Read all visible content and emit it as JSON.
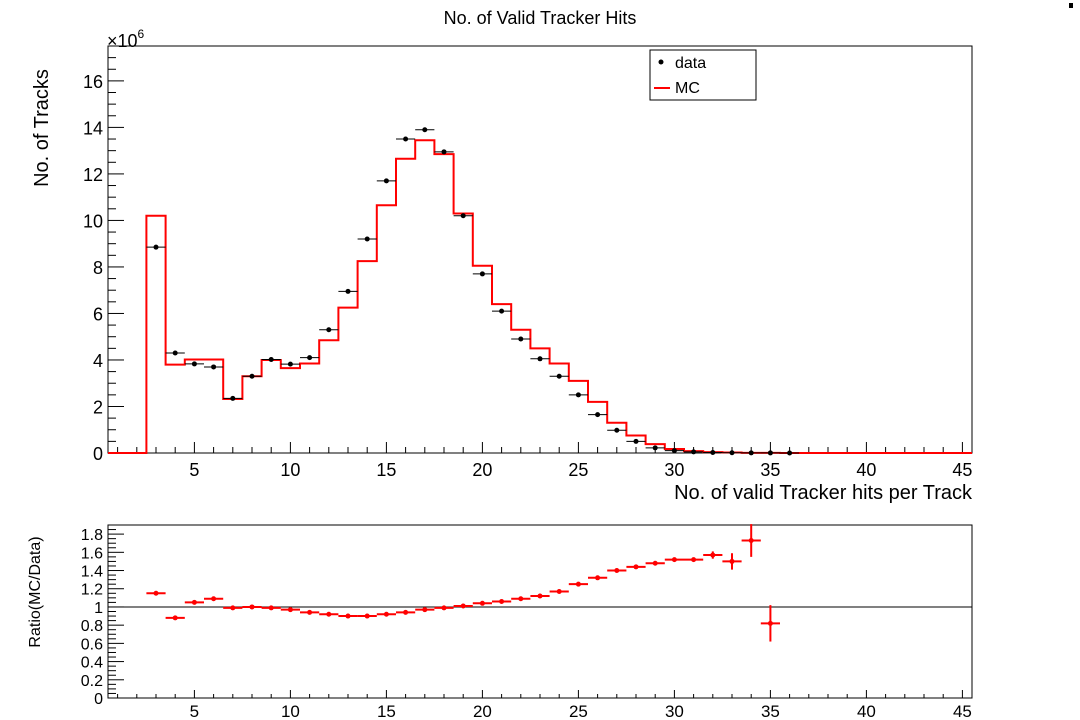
{
  "chart_data": [
    {
      "type": "histogram",
      "title": "No. of Valid Tracker Hits",
      "xlabel": "No. of valid Tracker hits per Track",
      "ylabel": "No. of Tracks",
      "y_multiplier": "×10",
      "y_multiplier_exp": "6",
      "xlim": [
        0.5,
        45.5
      ],
      "ylim": [
        0,
        17.5
      ],
      "x_ticks": [
        "5",
        "10",
        "15",
        "20",
        "25",
        "30",
        "35",
        "40",
        "45"
      ],
      "y_ticks": [
        "0",
        "2",
        "4",
        "6",
        "8",
        "10",
        "12",
        "14",
        "16"
      ],
      "legend": {
        "position": "top-right",
        "entries": [
          {
            "name": "data",
            "marker": "dot",
            "color": "#000000"
          },
          {
            "name": "MC",
            "marker": "line",
            "color": "#ff0000"
          }
        ]
      },
      "series": [
        {
          "name": "data",
          "x": [
            3,
            4,
            5,
            6,
            7,
            8,
            9,
            10,
            11,
            12,
            13,
            14,
            15,
            16,
            17,
            18,
            19,
            20,
            21,
            22,
            23,
            24,
            25,
            26,
            27,
            28,
            29,
            30,
            31,
            32,
            33,
            34,
            35,
            36
          ],
          "values": [
            8.85,
            4.3,
            3.83,
            3.7,
            2.35,
            3.3,
            4.02,
            3.82,
            4.1,
            5.3,
            6.95,
            9.2,
            11.7,
            13.5,
            13.9,
            12.95,
            10.2,
            7.7,
            6.1,
            4.9,
            4.05,
            3.3,
            2.5,
            1.65,
            0.98,
            0.5,
            0.22,
            0.1,
            0.05,
            0.02,
            0.01,
            0.005,
            0.003,
            0.001
          ]
        },
        {
          "name": "MC",
          "bins_low": 0.5,
          "bin_width": 1,
          "values": [
            0,
            0,
            10.2,
            3.8,
            4.02,
            4.02,
            2.32,
            3.3,
            4.0,
            3.65,
            3.85,
            4.85,
            6.25,
            8.25,
            10.65,
            12.65,
            13.45,
            12.85,
            10.3,
            8.05,
            6.4,
            5.3,
            4.5,
            3.85,
            3.1,
            2.2,
            1.3,
            0.75,
            0.38,
            0.17,
            0.08,
            0.04,
            0.02,
            0.008,
            0.003,
            0.001,
            0,
            0,
            0,
            0,
            0,
            0,
            0,
            0,
            0
          ]
        }
      ]
    },
    {
      "type": "scatter",
      "title": "",
      "xlabel": "",
      "ylabel": "Ratio(MC/Data)",
      "xlim": [
        0.5,
        45.5
      ],
      "ylim": [
        0,
        1.9
      ],
      "x_ticks": [
        "5",
        "10",
        "15",
        "20",
        "25",
        "30",
        "35",
        "40",
        "45"
      ],
      "y_ticks": [
        "0",
        "0.2",
        "0.4",
        "0.6",
        "0.8",
        "1",
        "1.2",
        "1.4",
        "1.6",
        "1.8"
      ],
      "reference_line": 1,
      "series": [
        {
          "name": "",
          "color": "#ff0000",
          "x": [
            3,
            4,
            5,
            6,
            7,
            8,
            9,
            10,
            11,
            12,
            13,
            14,
            15,
            16,
            17,
            18,
            19,
            20,
            21,
            22,
            23,
            24,
            25,
            26,
            27,
            28,
            29,
            30,
            31,
            32,
            33,
            34,
            35
          ],
          "values": [
            1.15,
            0.88,
            1.05,
            1.09,
            0.99,
            1.0,
            0.99,
            0.97,
            0.94,
            0.92,
            0.9,
            0.9,
            0.92,
            0.94,
            0.97,
            0.99,
            1.01,
            1.04,
            1.06,
            1.09,
            1.12,
            1.17,
            1.25,
            1.32,
            1.4,
            1.44,
            1.48,
            1.52,
            1.52,
            1.57,
            1.5,
            1.73,
            0.82
          ],
          "y_err": [
            0,
            0,
            0,
            0,
            0,
            0,
            0,
            0,
            0,
            0,
            0,
            0,
            0,
            0,
            0,
            0,
            0,
            0,
            0,
            0,
            0,
            0,
            0,
            0,
            0,
            0,
            0,
            0,
            0,
            0.04,
            0.09,
            0.18,
            0.2
          ]
        }
      ]
    }
  ]
}
